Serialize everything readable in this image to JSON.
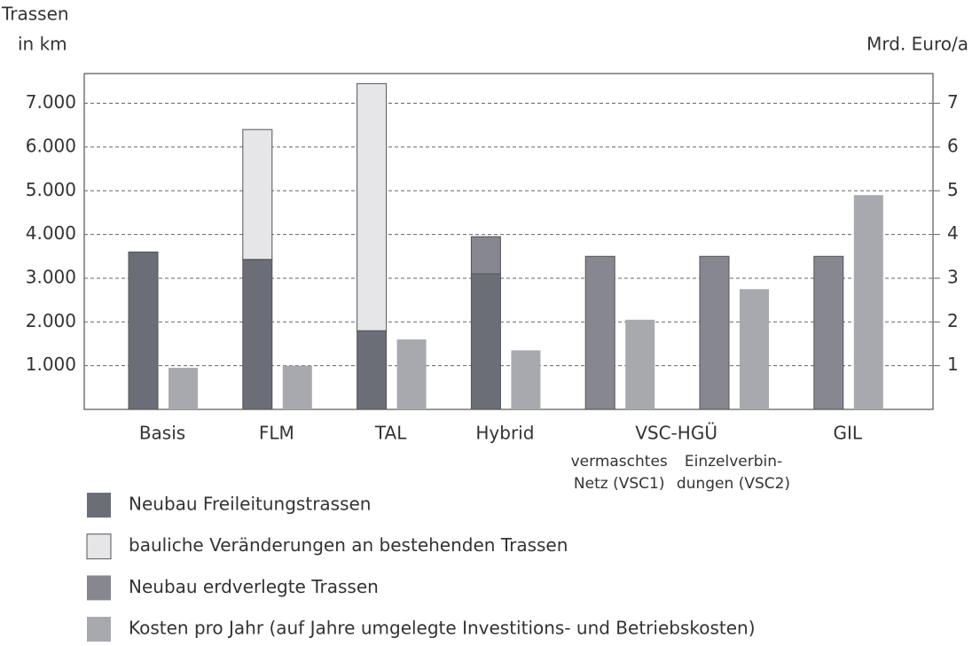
{
  "chart_data": {
    "type": "bar",
    "ylabel": [
      "Trassen",
      "in km"
    ],
    "y2label": "Mrd. Euro/a",
    "categories": [
      "Basis",
      "FLM",
      "TAL",
      "Hybrid",
      [
        "vermaschtes",
        "Netz (VSC1)"
      ],
      [
        "Einzelverbin-",
        "dungen (VSC2)"
      ],
      "GIL"
    ],
    "category_group": {
      "label": "VSC-HGÜ",
      "members": [
        4,
        5
      ]
    },
    "series": [
      {
        "name": "Neubau Freileitungstrassen",
        "color": "#6b6d77",
        "stack": true,
        "values": [
          3600,
          3430,
          1800,
          3100,
          null,
          null,
          null
        ]
      },
      {
        "name": "bauliche Veränderungen an bestehenden Trassen",
        "color": "#e6e6e8",
        "stack": true,
        "values": [
          null,
          2970,
          5650,
          null,
          null,
          null,
          null
        ]
      },
      {
        "name": "Neubau erdverlegte Trassen",
        "color": "#86878f",
        "stack": true,
        "values": [
          null,
          null,
          null,
          850,
          3500,
          3500,
          3500
        ]
      },
      {
        "name": "Kosten pro Jahr (auf Jahre umgelegte Investitions- und Betriebskosten)",
        "color": "#a8a9ae",
        "axis": "y2",
        "values": [
          0.95,
          1.0,
          1.6,
          1.35,
          2.05,
          2.75,
          4.9
        ]
      }
    ],
    "ylim": [
      0,
      7680
    ],
    "yticks": [
      {
        "value": 1000,
        "label": "1.000"
      },
      {
        "value": 2000,
        "label": "2.000"
      },
      {
        "value": 3000,
        "label": "3.000"
      },
      {
        "value": 4000,
        "label": "4.000"
      },
      {
        "value": 5000,
        "label": "5.000"
      },
      {
        "value": 6000,
        "label": "6.000"
      },
      {
        "value": 7000,
        "label": "7.000"
      }
    ],
    "y2lim": [
      0,
      7.68
    ],
    "y2ticks": [
      1,
      2,
      3,
      4,
      5,
      6,
      7
    ],
    "grid": true,
    "legend": "bottom"
  }
}
